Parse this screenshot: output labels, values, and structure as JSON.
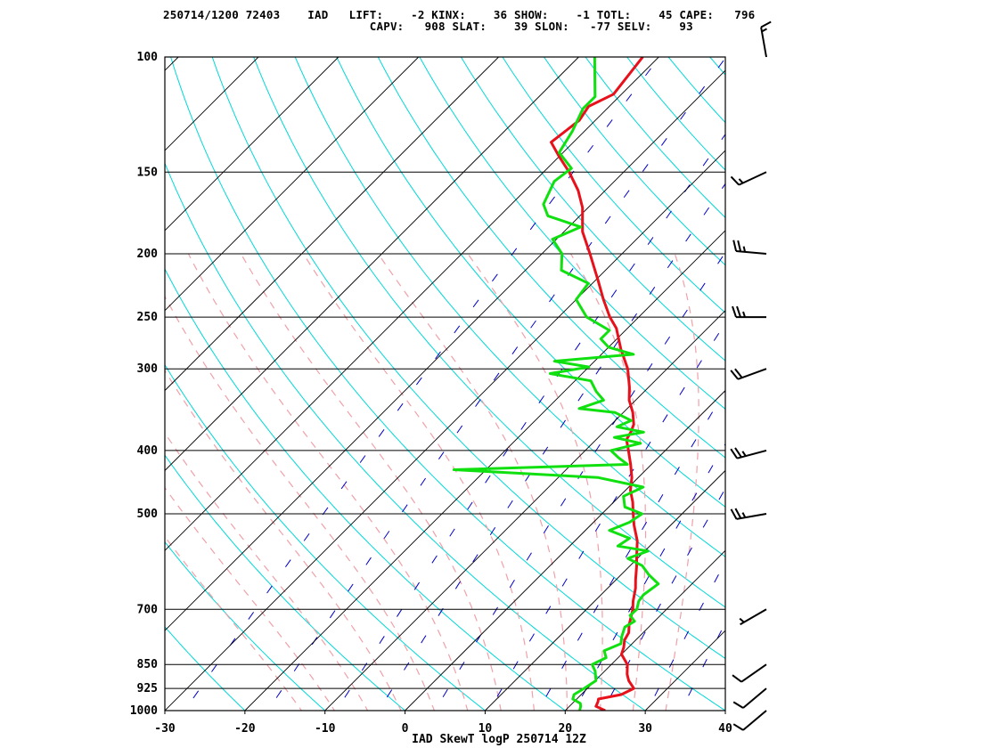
{
  "header": {
    "line1": "250714/1200 72403    IAD   LIFT:    -2 KINX:    36 SHOW:    -1 TOTL:    45 CAPE:   796",
    "line2": "                              CAPV:   908 SLAT:    39 SLON:   -77 SELV:    93"
  },
  "chart_data": {
    "type": "line",
    "title": "IAD SkewT logP 250714 12Z",
    "station": "IAD",
    "station_id": "72403",
    "datetime": "250714/1200",
    "indices": {
      "LIFT": -2,
      "KINX": 36,
      "SHOW": -1,
      "TOTL": 45,
      "CAPE": 796,
      "CAPV": 908,
      "SLAT": 39,
      "SLON": -77,
      "SELV": 93
    },
    "xlabel": "",
    "ylabel": "",
    "x_range": [
      -30,
      40
    ],
    "y_range_hpa": [
      1000,
      100
    ],
    "y_scale": "log",
    "pressure_ticks": [
      1000,
      925,
      850,
      700,
      500,
      400,
      300,
      250,
      200,
      150,
      100
    ],
    "pressure_tick_labels": [
      "1000",
      "925",
      "850",
      "700",
      "500",
      "400",
      "300",
      "250",
      "200",
      "150",
      "100"
    ],
    "temperature_ticks": [
      -30,
      -20,
      -10,
      0,
      10,
      20,
      30,
      40
    ],
    "temperature_tick_labels": [
      "-30",
      "-20",
      "-10",
      "0",
      "10",
      "20",
      "30",
      "40"
    ],
    "series": [
      {
        "color": "#e8101a",
        "points": [
          [
            1000,
            25.0
          ],
          [
            985,
            23.3
          ],
          [
            970,
            23.0
          ],
          [
            960,
            22.7
          ],
          [
            945,
            25.0
          ],
          [
            925,
            25.8
          ],
          [
            900,
            24.2
          ],
          [
            880,
            23.2
          ],
          [
            850,
            22.0
          ],
          [
            820,
            20.0
          ],
          [
            800,
            19.4
          ],
          [
            780,
            18.6
          ],
          [
            760,
            18.2
          ],
          [
            740,
            17.3
          ],
          [
            700,
            15.8
          ],
          [
            680,
            14.8
          ],
          [
            650,
            13.5
          ],
          [
            630,
            12.4
          ],
          [
            600,
            10.8
          ],
          [
            580,
            9.6
          ],
          [
            550,
            7.8
          ],
          [
            520,
            5.4
          ],
          [
            500,
            3.9
          ],
          [
            480,
            2.4
          ],
          [
            460,
            0.6
          ],
          [
            440,
            -0.8
          ],
          [
            420,
            -2.6
          ],
          [
            400,
            -4.6
          ],
          [
            385,
            -6.2
          ],
          [
            375,
            -6.6
          ],
          [
            365,
            -7.2
          ],
          [
            350,
            -8.8
          ],
          [
            335,
            -10.8
          ],
          [
            320,
            -12.4
          ],
          [
            300,
            -14.9
          ],
          [
            280,
            -18.2
          ],
          [
            260,
            -21.4
          ],
          [
            250,
            -23.6
          ],
          [
            235,
            -26.6
          ],
          [
            220,
            -29.6
          ],
          [
            200,
            -34.0
          ],
          [
            185,
            -37.7
          ],
          [
            170,
            -40.7
          ],
          [
            160,
            -43.4
          ],
          [
            150,
            -46.8
          ],
          [
            142,
            -50.0
          ],
          [
            135,
            -52.8
          ],
          [
            125,
            -52.0
          ],
          [
            119,
            -52.6
          ],
          [
            114,
            -51.0
          ],
          [
            100,
            -52.0
          ]
        ]
      },
      {
        "color": "#10e010",
        "points": [
          [
            1000,
            21.8
          ],
          [
            985,
            21.4
          ],
          [
            975,
            21.0
          ],
          [
            960,
            19.5
          ],
          [
            945,
            19.1
          ],
          [
            925,
            19.6
          ],
          [
            900,
            20.1
          ],
          [
            870,
            18.8
          ],
          [
            850,
            17.6
          ],
          [
            830,
            18.5
          ],
          [
            810,
            17.4
          ],
          [
            790,
            18.6
          ],
          [
            770,
            17.8
          ],
          [
            745,
            17.0
          ],
          [
            730,
            17.5
          ],
          [
            715,
            16.2
          ],
          [
            700,
            16.3
          ],
          [
            680,
            15.5
          ],
          [
            665,
            15.3
          ],
          [
            640,
            15.8
          ],
          [
            620,
            13.5
          ],
          [
            600,
            11.5
          ],
          [
            585,
            8.8
          ],
          [
            570,
            10.4
          ],
          [
            560,
            6.0
          ],
          [
            545,
            6.5
          ],
          [
            530,
            3.0
          ],
          [
            515,
            4.5
          ],
          [
            500,
            5.0
          ],
          [
            488,
            2.0
          ],
          [
            470,
            0.5
          ],
          [
            455,
            1.8
          ],
          [
            440,
            -5.0
          ],
          [
            428,
            -24.0
          ],
          [
            420,
            -3.0
          ],
          [
            410,
            -5.0
          ],
          [
            400,
            -6.8
          ],
          [
            390,
            -4.0
          ],
          [
            382,
            -8.0
          ],
          [
            375,
            -5.0
          ],
          [
            368,
            -9.0
          ],
          [
            360,
            -8.0
          ],
          [
            350,
            -11.0
          ],
          [
            345,
            -16.0
          ],
          [
            335,
            -14.0
          ],
          [
            325,
            -16.0
          ],
          [
            313,
            -18.0
          ],
          [
            305,
            -24.0
          ],
          [
            298,
            -20.0
          ],
          [
            292,
            -25.0
          ],
          [
            285,
            -16.0
          ],
          [
            278,
            -20.0
          ],
          [
            270,
            -22.0
          ],
          [
            262,
            -22.0
          ],
          [
            250,
            -26.5
          ],
          [
            235,
            -30.0
          ],
          [
            222,
            -30.5
          ],
          [
            212,
            -35.5
          ],
          [
            200,
            -37.5
          ],
          [
            190,
            -40.5
          ],
          [
            182,
            -38.5
          ],
          [
            175,
            -44.0
          ],
          [
            168,
            -46.0
          ],
          [
            155,
            -47.5
          ],
          [
            148,
            -47.0
          ],
          [
            140,
            -50.5
          ],
          [
            130,
            -51.5
          ],
          [
            120,
            -53.0
          ],
          [
            115,
            -53.0
          ],
          [
            100,
            -58.0
          ]
        ]
      }
    ],
    "wind_barbs": [
      {
        "p": 1000,
        "dir": 230,
        "kt": 10
      },
      {
        "p": 925,
        "dir": 230,
        "kt": 10
      },
      {
        "p": 850,
        "dir": 235,
        "kt": 10
      },
      {
        "p": 700,
        "dir": 240,
        "kt": 5
      },
      {
        "p": 500,
        "dir": 260,
        "kt": 25
      },
      {
        "p": 400,
        "dir": 255,
        "kt": 25
      },
      {
        "p": 300,
        "dir": 250,
        "kt": 20
      },
      {
        "p": 250,
        "dir": 270,
        "kt": 25
      },
      {
        "p": 200,
        "dir": 275,
        "kt": 25
      },
      {
        "p": 150,
        "dir": 245,
        "kt": 15
      },
      {
        "p": 100,
        "dir": 350,
        "kt": 15
      }
    ],
    "grid": true,
    "grid_colors": {
      "isobars": "#000000",
      "isotherms": "#000000",
      "dry_adiabats": "#00d8d8",
      "moist_adiabats": "#f0a0a8",
      "mixing_ratio": "#0000c8",
      "wind_barbs": "#000000"
    }
  }
}
